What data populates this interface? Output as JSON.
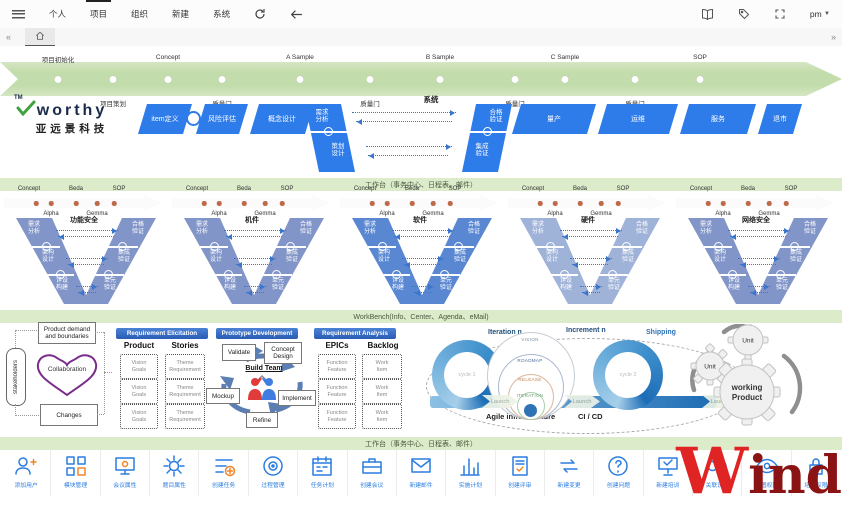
{
  "topbar": {
    "tabs": [
      "个人",
      "项目",
      "组织",
      "新建",
      "系统"
    ],
    "active_tab": "项目",
    "user_menu": "pm"
  },
  "timeline": {
    "milestones_top": [
      "项目初始化",
      "Concept",
      "A Sample",
      "B Sample",
      "C Sample",
      "SOP"
    ],
    "milestones_bottom": [
      "项目策划",
      "质量门",
      "质量门",
      "质量门",
      "质量门"
    ]
  },
  "logo": {
    "tm": "TM",
    "name": "worthy",
    "subtitle": "亚远景科技"
  },
  "mainflow": {
    "pre": [
      "item定义",
      "风险评估",
      "概念设计"
    ],
    "left_steps": [
      "需求\n分析",
      "策划\n设计"
    ],
    "right_steps": [
      "合格\n验证",
      "集成\n验证"
    ],
    "system_label": "系统",
    "post": [
      "量产",
      "运维",
      "服务",
      "退市"
    ]
  },
  "bands": {
    "worktable": "工作台（事务中心、日程表、邮件）",
    "workbench": "WorkBench(Info、Center、Agenda、eMail)"
  },
  "vmodels": {
    "arrow_top": [
      "Concept",
      "Beda",
      "SOP"
    ],
    "arrow_bottom": [
      "Alpha",
      "Gemma"
    ],
    "left_steps": [
      "需求\n分析",
      "架构\n设计",
      "详设\n构建"
    ],
    "right_steps": [
      "合格\n验证",
      "集成\n验证",
      "单元\n验证"
    ],
    "units": [
      {
        "title": "功能安全",
        "color": "#8295c8"
      },
      {
        "title": "机件",
        "color": "#8295c8"
      },
      {
        "title": "软件",
        "color": "#5a87d1"
      },
      {
        "title": "硬件",
        "color": "#9fb2d8"
      },
      {
        "title": "网络安全",
        "color": "#8295c8"
      }
    ]
  },
  "agile": {
    "stakeholders": "stakeholders",
    "product_demand": "Product demand and boundaries",
    "collaboration": "Collaboration",
    "changes": "Changes",
    "sections": [
      {
        "header": "Requirement Elicitation",
        "cols": [
          {
            "title": "Product",
            "item": "Vision\nGoals"
          },
          {
            "title": "Stories",
            "item": "Theme\nRequirement"
          }
        ]
      },
      {
        "header": "Requirement Analysis",
        "cols": [
          {
            "title": "EPICs",
            "item": "Function\nFeature"
          },
          {
            "title": "Backlog",
            "item": "Work\nItem"
          }
        ]
      }
    ],
    "prototype": {
      "header": "Prototype Development",
      "validate": "Validate",
      "concept_design": "Concept Design",
      "build_team": "Build Team",
      "mockup": "Mockup",
      "implement": "Implement",
      "refine": "Refine"
    },
    "right": {
      "iteration": "Iteration n",
      "increment": "Increment n",
      "shipping": "Shipping",
      "launch": "Launch",
      "rings": [
        "VISION",
        "ROADMAP",
        "RELEASE",
        "ITERATION"
      ],
      "cycles": [
        "cycle 1",
        "cycle 2"
      ],
      "infra": "Agile infrastructure",
      "cicd": "CI / CD",
      "unit": "Unit",
      "product_l1": "working",
      "product_l2": "Product"
    }
  },
  "toolbar": {
    "items": [
      {
        "label": "添加用户",
        "icon": "user-add"
      },
      {
        "label": "模块管理",
        "icon": "modules"
      },
      {
        "label": "会议属性",
        "icon": "meeting-props"
      },
      {
        "label": "题目属性",
        "icon": "gear"
      },
      {
        "label": "创建任务",
        "icon": "task-create"
      },
      {
        "label": "过程管理",
        "icon": "process"
      },
      {
        "label": "任务计划",
        "icon": "calendar"
      },
      {
        "label": "创建会议",
        "icon": "briefcase"
      },
      {
        "label": "新建邮件",
        "icon": "mail"
      },
      {
        "label": "实施计划",
        "icon": "chart"
      },
      {
        "label": "创建评审",
        "icon": "review"
      },
      {
        "label": "新建变更",
        "icon": "change"
      },
      {
        "label": "创建问题",
        "icon": "issue"
      },
      {
        "label": "新建培训",
        "icon": "training"
      },
      {
        "label": "关联设置",
        "icon": "relation"
      },
      {
        "label": "视图权限",
        "icon": "eye"
      },
      {
        "label": "培训权限",
        "icon": "lock"
      }
    ]
  },
  "watermark": {
    "part1": "W",
    "part2": "ind"
  }
}
